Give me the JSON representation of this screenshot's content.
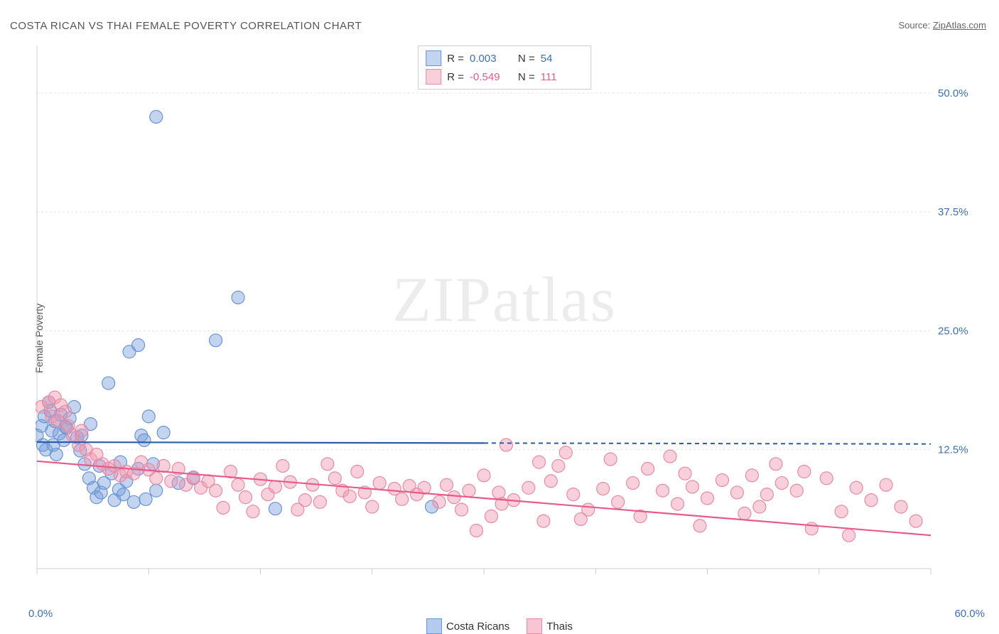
{
  "title": "COSTA RICAN VS THAI FEMALE POVERTY CORRELATION CHART",
  "source_prefix": "Source: ",
  "source_name": "ZipAtlas.com",
  "ylabel": "Female Poverty",
  "watermark_a": "ZIP",
  "watermark_b": "atlas",
  "chart": {
    "type": "scatter",
    "xlim": [
      0,
      60
    ],
    "ylim": [
      0,
      55
    ],
    "x_ticks": [
      0,
      7.5,
      15,
      22.5,
      30,
      37.5,
      45,
      52.5,
      60
    ],
    "y_gridlines": [
      12.5,
      25.0,
      37.5,
      50.0
    ],
    "y_tick_labels": [
      "12.5%",
      "25.0%",
      "37.5%",
      "50.0%"
    ],
    "x_left_label": "0.0%",
    "x_right_label": "60.0%",
    "grid_color": "#e5e5e5",
    "axis_color": "#cccccc",
    "label_color": "#3b6fb6",
    "series": [
      {
        "name": "Costa Ricans",
        "fill": "rgba(120,160,220,0.45)",
        "stroke": "#6a94d4",
        "r_label": "R =",
        "r_value": "0.003",
        "n_label": "N =",
        "n_value": "54",
        "value_color": "#3b6fb6",
        "regression": {
          "x1": 0,
          "y1": 13.3,
          "x2": 30,
          "y2": 13.2,
          "dash_x2": 60,
          "dash_y2": 13.1,
          "color": "#2e5da8"
        },
        "points": [
          [
            0,
            14
          ],
          [
            0.3,
            15
          ],
          [
            0.4,
            13
          ],
          [
            0.5,
            16
          ],
          [
            0.6,
            12.5
          ],
          [
            0.8,
            17.5
          ],
          [
            1.0,
            14.5
          ],
          [
            1.1,
            13
          ],
          [
            1.2,
            15.5
          ],
          [
            1.3,
            12
          ],
          [
            1.5,
            14.2
          ],
          [
            1.6,
            16.2
          ],
          [
            1.8,
            13.5
          ],
          [
            2.0,
            14.8
          ],
          [
            2.2,
            15.8
          ],
          [
            2.5,
            17
          ],
          [
            2.7,
            13.8
          ],
          [
            3.0,
            14
          ],
          [
            3.2,
            11
          ],
          [
            3.5,
            9.5
          ],
          [
            3.8,
            8.5
          ],
          [
            4.0,
            7.5
          ],
          [
            4.3,
            8
          ],
          [
            4.5,
            9
          ],
          [
            5.0,
            10
          ],
          [
            5.2,
            7.2
          ],
          [
            5.5,
            8.3
          ],
          [
            5.8,
            7.8
          ],
          [
            6.0,
            9.2
          ],
          [
            4.8,
            19.5
          ],
          [
            6.8,
            10.5
          ],
          [
            7.0,
            14
          ],
          [
            7.2,
            13.5
          ],
          [
            7.5,
            16
          ],
          [
            6.2,
            22.8
          ],
          [
            7.8,
            11
          ],
          [
            8.0,
            8.2
          ],
          [
            8.5,
            14.3
          ],
          [
            6.8,
            23.5
          ],
          [
            9.5,
            9
          ],
          [
            10.5,
            9.5
          ],
          [
            8.0,
            47.5
          ],
          [
            12.0,
            24
          ],
          [
            13.5,
            28.5
          ],
          [
            16.0,
            6.3
          ],
          [
            26.5,
            6.5
          ],
          [
            6.5,
            7.0
          ],
          [
            7.3,
            7.3
          ],
          [
            4.2,
            10.8
          ],
          [
            5.6,
            11.2
          ],
          [
            2.9,
            12.4
          ],
          [
            1.9,
            14.9
          ],
          [
            0.9,
            16.6
          ],
          [
            3.6,
            15.2
          ]
        ]
      },
      {
        "name": "Thais",
        "fill": "rgba(240,150,175,0.45)",
        "stroke": "#e88aa5",
        "r_label": "R =",
        "r_value": "-0.549",
        "n_label": "N =",
        "n_value": "111",
        "value_color": "#e85a8a",
        "regression": {
          "x1": 0,
          "y1": 11.3,
          "x2": 60,
          "y2": 3.5,
          "color": "#e85a8a"
        },
        "points": [
          [
            0.3,
            17
          ],
          [
            0.8,
            17.5
          ],
          [
            1.0,
            16
          ],
          [
            1.2,
            18
          ],
          [
            1.4,
            15.5
          ],
          [
            1.6,
            17.2
          ],
          [
            1.9,
            16.5
          ],
          [
            2.1,
            15
          ],
          [
            2.4,
            14
          ],
          [
            2.8,
            13
          ],
          [
            3.0,
            14.5
          ],
          [
            3.3,
            12.5
          ],
          [
            3.6,
            11.5
          ],
          [
            4.0,
            12
          ],
          [
            4.4,
            11
          ],
          [
            4.8,
            10.5
          ],
          [
            5.2,
            10.8
          ],
          [
            5.6,
            9.8
          ],
          [
            6.0,
            10.2
          ],
          [
            6.5,
            10
          ],
          [
            7.0,
            11.2
          ],
          [
            7.5,
            10.4
          ],
          [
            8.0,
            9.5
          ],
          [
            8.5,
            10.8
          ],
          [
            9.0,
            9.2
          ],
          [
            9.5,
            10.5
          ],
          [
            10,
            8.8
          ],
          [
            10.5,
            9.6
          ],
          [
            11,
            8.5
          ],
          [
            11.5,
            9.2
          ],
          [
            12,
            8.2
          ],
          [
            13,
            10.2
          ],
          [
            13.5,
            8.8
          ],
          [
            14,
            7.5
          ],
          [
            15,
            9.4
          ],
          [
            15.5,
            7.8
          ],
          [
            16,
            8.6
          ],
          [
            17,
            9.1
          ],
          [
            18,
            7.2
          ],
          [
            18.5,
            8.8
          ],
          [
            19,
            7.0
          ],
          [
            20,
            9.5
          ],
          [
            20.5,
            8.2
          ],
          [
            21,
            7.6
          ],
          [
            22,
            8.0
          ],
          [
            22.5,
            6.5
          ],
          [
            23,
            9.0
          ],
          [
            24,
            8.4
          ],
          [
            24.5,
            7.3
          ],
          [
            25,
            8.7
          ],
          [
            25.5,
            7.8
          ],
          [
            26,
            8.5
          ],
          [
            27,
            7.0
          ],
          [
            27.5,
            8.8
          ],
          [
            28,
            7.5
          ],
          [
            29,
            8.2
          ],
          [
            29.5,
            4.0
          ],
          [
            30,
            9.8
          ],
          [
            30.5,
            5.5
          ],
          [
            31,
            8.0
          ],
          [
            31.5,
            13.0
          ],
          [
            32,
            7.2
          ],
          [
            33,
            8.5
          ],
          [
            34,
            5.0
          ],
          [
            34.5,
            9.2
          ],
          [
            35,
            10.8
          ],
          [
            35.5,
            12.2
          ],
          [
            36,
            7.8
          ],
          [
            37,
            6.2
          ],
          [
            38,
            8.4
          ],
          [
            38.5,
            11.5
          ],
          [
            39,
            7.0
          ],
          [
            40,
            9.0
          ],
          [
            41,
            10.5
          ],
          [
            42,
            8.2
          ],
          [
            43,
            6.8
          ],
          [
            43.5,
            10.0
          ],
          [
            44,
            8.6
          ],
          [
            44.5,
            4.5
          ],
          [
            45,
            7.4
          ],
          [
            46,
            9.3
          ],
          [
            47,
            8.0
          ],
          [
            48,
            9.8
          ],
          [
            48.5,
            6.5
          ],
          [
            49,
            7.8
          ],
          [
            50,
            9.0
          ],
          [
            51,
            8.2
          ],
          [
            52,
            4.2
          ],
          [
            53,
            9.5
          ],
          [
            54,
            6.0
          ],
          [
            55,
            8.5
          ],
          [
            56,
            7.2
          ],
          [
            57,
            8.8
          ],
          [
            58,
            6.5
          ],
          [
            59,
            5.0
          ],
          [
            54.5,
            3.5
          ],
          [
            47.5,
            5.8
          ],
          [
            36.5,
            5.2
          ],
          [
            40.5,
            5.5
          ],
          [
            14.5,
            6.0
          ],
          [
            17.5,
            6.2
          ],
          [
            12.5,
            6.4
          ],
          [
            31.2,
            6.8
          ],
          [
            28.5,
            6.2
          ],
          [
            19.5,
            11.0
          ],
          [
            21.5,
            10.2
          ],
          [
            16.5,
            10.8
          ],
          [
            33.7,
            11.2
          ],
          [
            42.5,
            11.8
          ],
          [
            49.6,
            11.0
          ],
          [
            51.5,
            10.2
          ]
        ]
      }
    ],
    "legend_items": [
      {
        "label": "Costa Ricans",
        "fill": "rgba(120,160,220,0.55)",
        "stroke": "#6a94d4"
      },
      {
        "label": "Thais",
        "fill": "rgba(240,150,175,0.55)",
        "stroke": "#e88aa5"
      }
    ]
  }
}
